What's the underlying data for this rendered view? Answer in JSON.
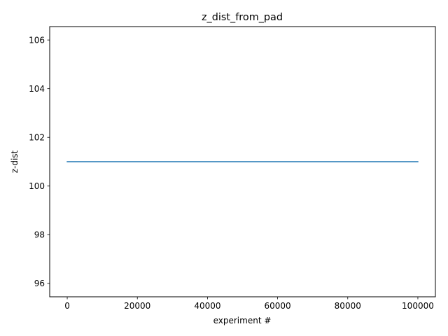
{
  "chart_data": {
    "type": "line",
    "title": "z_dist_from_pad",
    "xlabel": "experiment #",
    "ylabel": "z-dist",
    "xlim": [
      -5000,
      105000
    ],
    "ylim": [
      95.45,
      106.55
    ],
    "x_ticks": [
      0,
      20000,
      40000,
      60000,
      80000,
      100000
    ],
    "x_tick_labels": [
      "0",
      "20000",
      "40000",
      "60000",
      "80000",
      "100000"
    ],
    "y_ticks": [
      96,
      98,
      100,
      102,
      104,
      106
    ],
    "y_tick_labels": [
      "96",
      "98",
      "100",
      "102",
      "104",
      "106"
    ],
    "grid": false,
    "series": [
      {
        "color": "#1f77b4",
        "x": [
          0,
          100000
        ],
        "y": [
          101,
          101
        ]
      }
    ]
  }
}
